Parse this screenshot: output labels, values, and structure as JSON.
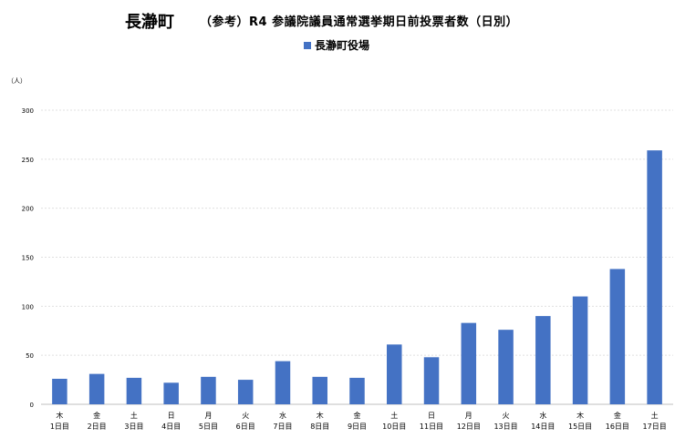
{
  "title": "長瀞町",
  "subtitle": "（参考）R4 参議院議員通常選挙期日前投票者数（日別）",
  "unit_label": "（人）",
  "chart_data": {
    "type": "bar",
    "categories": [
      [
        "木",
        "1日目"
      ],
      [
        "金",
        "2日目"
      ],
      [
        "土",
        "3日目"
      ],
      [
        "日",
        "4日目"
      ],
      [
        "月",
        "5日目"
      ],
      [
        "火",
        "6日目"
      ],
      [
        "水",
        "7日目"
      ],
      [
        "木",
        "8日目"
      ],
      [
        "金",
        "9日目"
      ],
      [
        "土",
        "10日目"
      ],
      [
        "日",
        "11日目"
      ],
      [
        "月",
        "12日目"
      ],
      [
        "火",
        "13日目"
      ],
      [
        "水",
        "14日目"
      ],
      [
        "木",
        "15日目"
      ],
      [
        "金",
        "16日目"
      ],
      [
        "土",
        "17日目"
      ]
    ],
    "series": [
      {
        "name": "長瀞町役場",
        "color": "#4472c4",
        "values": [
          26,
          31,
          27,
          22,
          28,
          25,
          44,
          28,
          27,
          61,
          48,
          83,
          76,
          90,
          110,
          138,
          259
        ]
      }
    ],
    "ylim": [
      0,
      300
    ],
    "yticks": [
      0,
      50,
      100,
      150,
      200,
      250,
      300
    ],
    "grid": true,
    "legend_position": "top-center"
  }
}
